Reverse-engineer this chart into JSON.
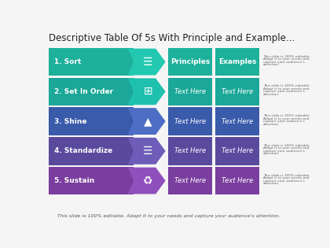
{
  "title": "Descriptive Table Of 5s With Principle and Example...",
  "footer": "This slide is 100% editable. Adapt it to your needs and capture your audience's attention.",
  "rows": [
    {
      "label": "1. Sort",
      "icon": "≡"
    },
    {
      "label": "2. Set In Order",
      "icon": "‖"
    },
    {
      "label": "3. Shine",
      "icon": "▲"
    },
    {
      "label": "4. Standardize",
      "icon": "☰"
    },
    {
      "label": "5. Sustain",
      "icon": "♻"
    }
  ],
  "header_principles": "Principles",
  "header_examples": "Examples",
  "text_here": "Text Here",
  "bg_color": "#f5f5f5",
  "title_color": "#222222",
  "row_colors": [
    {
      "main": "#1db09a",
      "arrow": "#22c9b0"
    },
    {
      "main": "#1ba898",
      "arrow": "#20c0ae"
    },
    {
      "main": "#3a5aaa",
      "arrow": "#4d6ec4"
    },
    {
      "main": "#5a4a9e",
      "arrow": "#6d5db8"
    },
    {
      "main": "#7a3e9e",
      "arrow": "#9050bc"
    }
  ],
  "side_lines": [
    "This slide is 100% editable.",
    "Adapt it to your needs and",
    "capture your audience's",
    "attention."
  ]
}
